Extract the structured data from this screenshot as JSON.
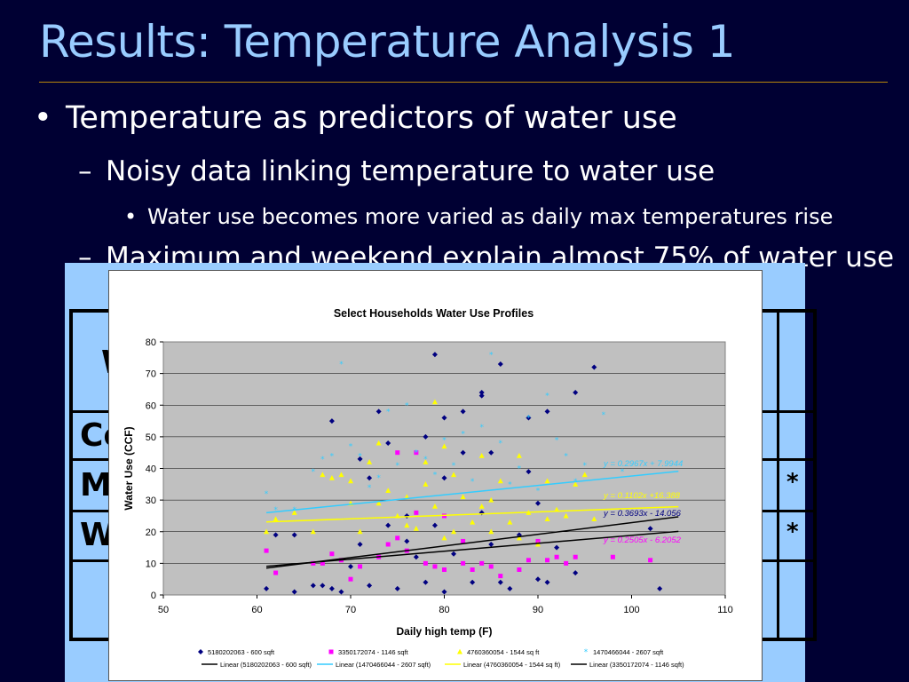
{
  "slide": {
    "title": "Results: Temperature Analysis 1",
    "bullet1": "Temperature as predictors of water use",
    "bullet1_marker": "•",
    "bullet2": "Noisy data linking temperature to water use",
    "bullet2_marker": "–",
    "bullet3": "Water use becomes more varied as daily max temperatures rise",
    "bullet3_marker": "•",
    "bullet4": "Maximum and weekend explain almost 75% of water use",
    "bullet4_marker": "–"
  },
  "background_table": {
    "row_labels": [
      "W",
      "Co",
      "M",
      "W"
    ],
    "stars": [
      "*",
      "*"
    ]
  },
  "colors": {
    "background": "#000033",
    "title": "#99ccff",
    "panel": "#99ccff",
    "series_5180202063": "#000080",
    "series_3350172074": "#ff00ff",
    "series_4760360054": "#ffff00",
    "series_1470466044": "#33ccff",
    "plot_area": "#c0c0c0"
  },
  "chart_data": {
    "type": "scatter",
    "title": "Select Households Water Use Profiles",
    "xlabel": "Daily high temp (F)",
    "ylabel": "Water Use (CCF)",
    "xlim": [
      50,
      110
    ],
    "ylim": [
      0,
      80
    ],
    "xticks": [
      50,
      60,
      70,
      80,
      90,
      100,
      110
    ],
    "yticks": [
      0,
      10,
      20,
      30,
      40,
      50,
      60,
      70,
      80
    ],
    "grid": "horizontal",
    "legend_position": "bottom",
    "series": [
      {
        "name": "5180202063 - 600 sqft",
        "color": "#000080",
        "marker": "diamond",
        "points": [
          [
            61,
            2
          ],
          [
            62,
            19
          ],
          [
            64,
            19
          ],
          [
            64,
            1
          ],
          [
            66,
            3
          ],
          [
            67,
            3
          ],
          [
            68,
            55
          ],
          [
            68,
            2
          ],
          [
            69,
            1
          ],
          [
            70,
            9
          ],
          [
            71,
            43
          ],
          [
            71,
            16
          ],
          [
            72,
            3
          ],
          [
            72,
            37
          ],
          [
            73,
            58
          ],
          [
            74,
            48
          ],
          [
            74,
            22
          ],
          [
            75,
            2
          ],
          [
            76,
            25
          ],
          [
            76,
            17
          ],
          [
            77,
            12
          ],
          [
            78,
            4
          ],
          [
            78,
            50
          ],
          [
            79,
            76
          ],
          [
            79,
            22
          ],
          [
            80,
            56
          ],
          [
            80,
            1
          ],
          [
            80,
            37
          ],
          [
            81,
            13
          ],
          [
            82,
            58
          ],
          [
            82,
            45
          ],
          [
            83,
            4
          ],
          [
            84,
            64
          ],
          [
            84,
            63
          ],
          [
            84,
            26
          ],
          [
            85,
            45
          ],
          [
            85,
            16
          ],
          [
            86,
            73
          ],
          [
            86,
            4
          ],
          [
            87,
            2
          ],
          [
            88,
            19
          ],
          [
            89,
            39
          ],
          [
            89,
            56
          ],
          [
            90,
            29
          ],
          [
            90,
            5
          ],
          [
            91,
            58
          ],
          [
            91,
            4
          ],
          [
            92,
            15
          ],
          [
            94,
            64
          ],
          [
            94,
            7
          ],
          [
            96,
            72
          ],
          [
            102,
            21
          ],
          [
            103,
            2
          ]
        ]
      },
      {
        "name": "3350172074 - 1146 sqft",
        "color": "#ff00ff",
        "marker": "square",
        "points": [
          [
            61,
            14
          ],
          [
            62,
            7
          ],
          [
            66,
            10
          ],
          [
            67,
            10
          ],
          [
            68,
            13
          ],
          [
            69,
            11
          ],
          [
            70,
            5
          ],
          [
            71,
            9
          ],
          [
            73,
            12
          ],
          [
            74,
            16
          ],
          [
            75,
            45
          ],
          [
            75,
            18
          ],
          [
            76,
            14
          ],
          [
            77,
            45
          ],
          [
            77,
            26
          ],
          [
            78,
            10
          ],
          [
            79,
            9
          ],
          [
            80,
            25
          ],
          [
            80,
            8
          ],
          [
            82,
            17
          ],
          [
            82,
            10
          ],
          [
            83,
            8
          ],
          [
            84,
            10
          ],
          [
            85,
            9
          ],
          [
            86,
            6
          ],
          [
            88,
            8
          ],
          [
            89,
            11
          ],
          [
            90,
            17
          ],
          [
            91,
            11
          ],
          [
            92,
            12
          ],
          [
            93,
            10
          ],
          [
            94,
            12
          ],
          [
            98,
            12
          ],
          [
            102,
            11
          ]
        ]
      },
      {
        "name": "4760360054 - 1544 sq ft",
        "color": "#ffff00",
        "marker": "triangle",
        "points": [
          [
            61,
            20
          ],
          [
            62,
            24
          ],
          [
            64,
            26
          ],
          [
            66,
            20
          ],
          [
            67,
            38
          ],
          [
            68,
            37
          ],
          [
            69,
            38
          ],
          [
            70,
            36
          ],
          [
            70,
            29
          ],
          [
            71,
            20
          ],
          [
            72,
            42
          ],
          [
            73,
            48
          ],
          [
            73,
            29
          ],
          [
            74,
            33
          ],
          [
            75,
            25
          ],
          [
            76,
            31
          ],
          [
            76,
            22
          ],
          [
            77,
            21
          ],
          [
            78,
            35
          ],
          [
            78,
            42
          ],
          [
            79,
            61
          ],
          [
            79,
            28
          ],
          [
            80,
            47
          ],
          [
            80,
            18
          ],
          [
            81,
            38
          ],
          [
            81,
            20
          ],
          [
            82,
            31
          ],
          [
            83,
            23
          ],
          [
            84,
            44
          ],
          [
            84,
            28
          ],
          [
            85,
            30
          ],
          [
            85,
            20
          ],
          [
            86,
            36
          ],
          [
            87,
            23
          ],
          [
            88,
            44
          ],
          [
            88,
            18
          ],
          [
            89,
            26
          ],
          [
            90,
            16
          ],
          [
            91,
            36
          ],
          [
            91,
            24
          ],
          [
            92,
            27
          ],
          [
            93,
            25
          ],
          [
            94,
            35
          ],
          [
            95,
            38
          ],
          [
            96,
            24
          ]
        ]
      },
      {
        "name": "1470466044 - 2607 sqft",
        "color": "#33ccff",
        "marker": "circle",
        "points": [
          [
            61,
            32
          ],
          [
            62,
            27
          ],
          [
            64,
            27
          ],
          [
            66,
            39
          ],
          [
            67,
            43
          ],
          [
            68,
            44
          ],
          [
            69,
            73
          ],
          [
            70,
            47
          ],
          [
            71,
            44
          ],
          [
            72,
            34
          ],
          [
            73,
            37
          ],
          [
            74,
            58
          ],
          [
            75,
            41
          ],
          [
            76,
            60
          ],
          [
            77,
            45
          ],
          [
            78,
            43
          ],
          [
            79,
            38
          ],
          [
            80,
            49
          ],
          [
            81,
            41
          ],
          [
            82,
            51
          ],
          [
            83,
            36
          ],
          [
            84,
            53
          ],
          [
            85,
            76
          ],
          [
            86,
            48
          ],
          [
            87,
            35
          ],
          [
            88,
            40
          ],
          [
            89,
            56
          ],
          [
            90,
            33
          ],
          [
            91,
            63
          ],
          [
            92,
            49
          ],
          [
            93,
            44
          ],
          [
            94,
            36
          ],
          [
            95,
            41
          ],
          [
            97,
            57
          ],
          [
            99,
            39
          ]
        ]
      }
    ],
    "trendlines": [
      {
        "name": "Linear (5180202063 - 600 sqft)",
        "color": "#000000",
        "x": [
          61,
          105
        ],
        "y": [
          9.07,
          20.1
        ],
        "equation": "y = 0.2505x - 6.2052",
        "equation_color": "#ff00ff"
      },
      {
        "name": "Linear (1470466044 - 2607 sqft)",
        "color": "#33ccff",
        "x": [
          61,
          105
        ],
        "y": [
          26.0,
          39.1
        ],
        "equation": "y = 0.2967x + 7.9944",
        "equation_color": "#33ccff"
      },
      {
        "name": "Linear (4760360054 - 1544 sq ft)",
        "color": "#ffff00",
        "x": [
          61,
          105
        ],
        "y": [
          23.1,
          27.9
        ],
        "equation": "y = 0.1102x +16.388",
        "equation_color": "#ffff00"
      },
      {
        "name": "Linear (3350172074 - 1146 sqft)",
        "color": "#000000",
        "x": [
          61,
          105
        ],
        "y": [
          8.5,
          24.7
        ],
        "equation": "y = 0.3693x - 14.056",
        "equation_color": "#000080"
      }
    ]
  }
}
